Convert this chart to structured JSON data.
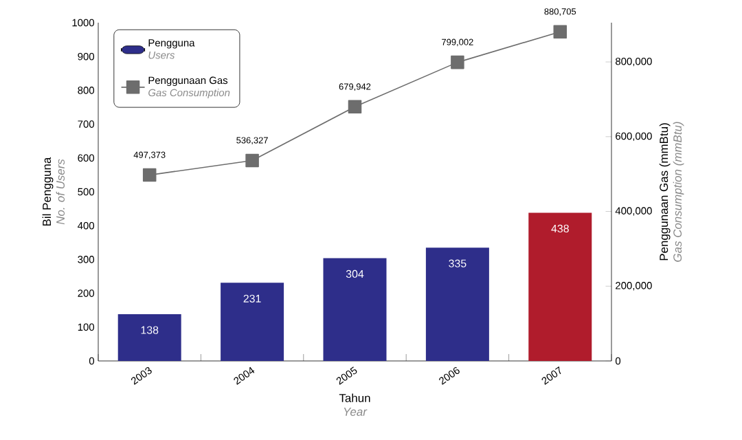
{
  "chart_data": {
    "type": "bar",
    "categories": [
      "2003",
      "2004",
      "2005",
      "2006",
      "2007"
    ],
    "xlabel": "Tahun",
    "ylabel": "Bil Pengguna",
    "y2label": "Penggunaan Gas (mmBtu)",
    "annotations": [
      "No. of Users",
      "Gas Consumption (mmBtu)",
      "Year",
      "Users",
      "Gas Consumption"
    ],
    "ylim": [
      0,
      1000
    ],
    "yticks": [
      0,
      100,
      200,
      300,
      400,
      500,
      600,
      700,
      800,
      900,
      1000
    ],
    "y2lim": [
      0,
      905000
    ],
    "y2ticks": [
      0,
      {
        "value": 200000,
        "label": "200,000"
      },
      {
        "value": 400000,
        "label": "400,000"
      },
      {
        "value": 600000,
        "label": "600,000"
      },
      {
        "value": 800000,
        "label": "800,000"
      }
    ],
    "legend": "top left",
    "series": [
      {
        "name": "Pengguna",
        "color": "#2e2e8a",
        "colors": [
          "#2e2e8a",
          "#2e2e8a",
          "#2e2e8a",
          "#2e2e8a",
          "#b01c2c"
        ],
        "values": [
          138,
          231,
          304,
          335,
          438
        ],
        "value_labels": [
          "138",
          "231",
          "304",
          "335",
          "438"
        ]
      },
      {
        "name": "Penggunaan Gas",
        "type": "line",
        "axis": "y2",
        "color": "#6d6d6d",
        "marker": "square",
        "values": [
          497373,
          536327,
          679942,
          799002,
          880705
        ],
        "value_labels": [
          "497,373",
          "536,327",
          "679,942",
          "799,002",
          "880,705"
        ]
      }
    ]
  }
}
